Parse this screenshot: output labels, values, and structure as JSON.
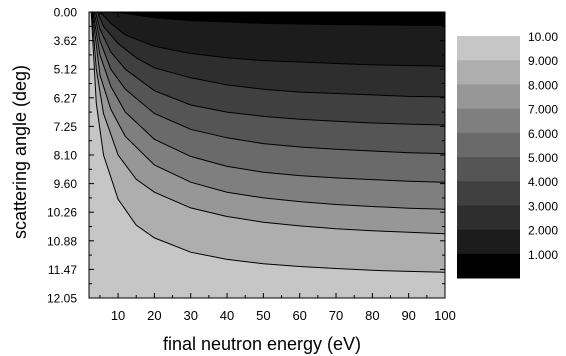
{
  "chart_data": {
    "type": "heatmap",
    "subtype": "filled-contour",
    "xlabel": "final neutron energy (eV)",
    "ylabel": "scattering angle (deg)",
    "xlim": [
      2,
      100
    ],
    "x_ticks": [
      10,
      20,
      30,
      40,
      50,
      60,
      70,
      80,
      90,
      100
    ],
    "y_ticks": [
      "0.00",
      "3.62",
      "5.12",
      "6.27",
      "7.25",
      "8.10",
      "9.60",
      "10.26",
      "10.88",
      "11.47",
      "12.05"
    ],
    "y_axis_inverted": true,
    "contour_levels": [
      1,
      2,
      3,
      4,
      5,
      6,
      7,
      8,
      9,
      10
    ],
    "legend_labels": [
      "10.00",
      "9.000",
      "8.000",
      "7.000",
      "6.000",
      "5.000",
      "4.000",
      "3.000",
      "2.000",
      "1.000"
    ],
    "legend_position": "right",
    "band_colors": [
      "#000000",
      "#1c1c1c",
      "#2e2e2e",
      "#404040",
      "#555555",
      "#6a6a6a",
      "#7f7f7f",
      "#979797",
      "#aeaeae",
      "#c6c6c6"
    ],
    "contour_lines": [
      {
        "x": [
          7.8,
          12,
          20,
          30,
          40,
          50,
          60,
          70,
          80,
          90,
          100
        ],
        "y_tick_index": [
          0.0,
          0.05,
          0.2,
          0.3,
          0.35,
          0.4,
          0.42,
          0.44,
          0.45,
          0.46,
          0.47
        ]
      },
      {
        "x": [
          5.1,
          8,
          12,
          20,
          30,
          40,
          50,
          60,
          70,
          80,
          90,
          100
        ],
        "y_tick_index": [
          0.0,
          0.4,
          0.8,
          1.2,
          1.45,
          1.6,
          1.7,
          1.75,
          1.8,
          1.85,
          1.87,
          1.9
        ]
      },
      {
        "x": [
          4.3,
          6,
          10,
          15,
          20,
          30,
          40,
          50,
          60,
          70,
          80,
          90,
          100
        ],
        "y_tick_index": [
          0.0,
          0.5,
          1.1,
          1.6,
          1.95,
          2.3,
          2.55,
          2.7,
          2.8,
          2.85,
          2.9,
          2.95,
          2.97
        ]
      },
      {
        "x": [
          3.8,
          5,
          8,
          12,
          20,
          30,
          40,
          50,
          60,
          70,
          80,
          90,
          100
        ],
        "y_tick_index": [
          0.0,
          0.6,
          1.4,
          2.0,
          2.75,
          3.25,
          3.5,
          3.65,
          3.75,
          3.82,
          3.88,
          3.92,
          3.95
        ]
      },
      {
        "x": [
          3.4,
          5,
          8,
          12,
          20,
          30,
          40,
          50,
          60,
          70,
          80,
          90,
          100
        ],
        "y_tick_index": [
          0.0,
          1.0,
          2.0,
          2.7,
          3.55,
          4.1,
          4.4,
          4.6,
          4.72,
          4.8,
          4.86,
          4.92,
          4.95
        ]
      },
      {
        "x": [
          3.1,
          5,
          8,
          12,
          20,
          30,
          40,
          50,
          60,
          70,
          80,
          90,
          100
        ],
        "y_tick_index": [
          0.0,
          1.5,
          2.6,
          3.5,
          4.45,
          5.05,
          5.4,
          5.6,
          5.72,
          5.8,
          5.86,
          5.92,
          5.95
        ]
      },
      {
        "x": [
          2.9,
          5,
          8,
          12,
          20,
          30,
          40,
          50,
          60,
          70,
          80,
          90,
          100
        ],
        "y_tick_index": [
          0.0,
          2.2,
          3.4,
          4.35,
          5.35,
          5.95,
          6.3,
          6.5,
          6.63,
          6.73,
          6.8,
          6.86,
          6.9
        ]
      },
      {
        "x": [
          2.75,
          4,
          6,
          10,
          15,
          20,
          30,
          40,
          50,
          60,
          70,
          80,
          90,
          100
        ],
        "y_tick_index": [
          0.0,
          2.0,
          3.55,
          5.0,
          5.85,
          6.3,
          6.85,
          7.15,
          7.35,
          7.48,
          7.58,
          7.65,
          7.7,
          7.75
        ]
      },
      {
        "x": [
          2.6,
          4,
          6,
          10,
          15,
          20,
          30,
          40,
          50,
          60,
          70,
          80,
          90,
          100
        ],
        "y_tick_index": [
          0.0,
          3.2,
          5.0,
          6.55,
          7.45,
          7.9,
          8.4,
          8.65,
          8.8,
          8.9,
          8.97,
          9.03,
          9.07,
          9.1
        ]
      }
    ]
  }
}
